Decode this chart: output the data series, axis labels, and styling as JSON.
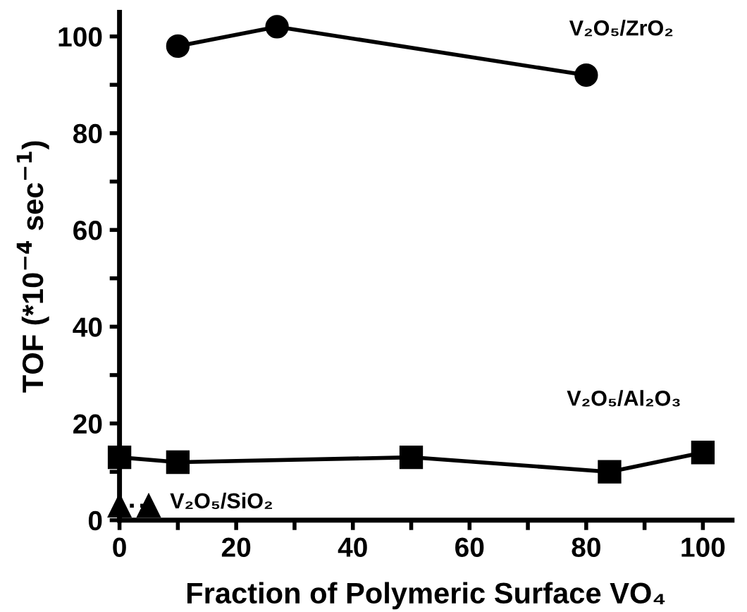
{
  "chart_data": {
    "type": "line",
    "xlabel": "Fraction of Polymeric Surface VO₄",
    "ylabel": "TOF (*10$^{−4}$ sec$^{−1}$)",
    "xlim": [
      0,
      105
    ],
    "ylim": [
      0,
      105
    ],
    "xticks": [
      0,
      {
        "value": 10,
        "label": null
      },
      20,
      {
        "value": 30,
        "label": null
      },
      40,
      {
        "value": 50,
        "label": null
      },
      60,
      {
        "value": 70,
        "label": null
      },
      80,
      {
        "value": 90,
        "label": null
      },
      100
    ],
    "yticks": [
      0,
      {
        "value": 10,
        "label": null
      },
      20,
      {
        "value": 30,
        "label": null
      },
      40,
      {
        "value": 50,
        "label": null
      },
      60,
      {
        "value": 70,
        "label": null
      },
      80,
      {
        "value": 90,
        "label": null
      },
      100
    ],
    "grid": false,
    "legend": false,
    "series": [
      {
        "name": "V₂O₅/ZrO₂",
        "color": "#000000",
        "marker": "circle",
        "line_style": "solid",
        "x": [
          10,
          27,
          80
        ],
        "values": [
          98,
          102,
          92
        ]
      },
      {
        "name": "V₂O₅/Al₂O₃",
        "color": "#000000",
        "marker": "square",
        "line_style": "solid",
        "x": [
          0,
          10,
          50,
          84,
          100
        ],
        "values": [
          13,
          12,
          13,
          10,
          14
        ]
      },
      {
        "name": "V₂O₅/SiO₂",
        "color": "#000000",
        "marker": "triangle",
        "line_style": "dotted",
        "x": [
          0,
          5
        ],
        "values": [
          3,
          3
        ]
      }
    ]
  }
}
